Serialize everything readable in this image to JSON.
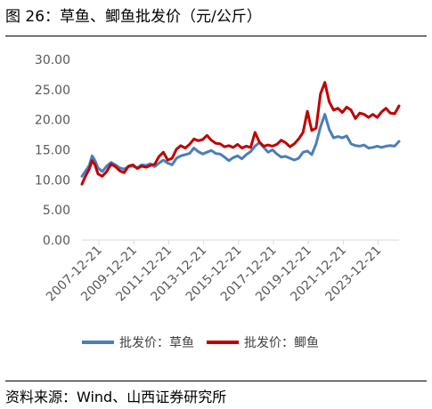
{
  "figure": {
    "title": "图 26：草鱼、鲫鱼批发价（元/公斤）",
    "source": "资料来源：Wind、山西证券研究所"
  },
  "chart_data": {
    "type": "line",
    "title": "",
    "xlabel": "",
    "ylabel": "",
    "ylim": [
      0,
      30
    ],
    "yticks": [
      "0.00",
      "5.00",
      "10.00",
      "15.00",
      "20.00",
      "25.00",
      "30.00"
    ],
    "xlim": [
      "2007-01",
      "2025-03"
    ],
    "xticks": [
      "2007-12-21",
      "2009-12-21",
      "2011-12-21",
      "2013-12-21",
      "2015-12-21",
      "2017-12-21",
      "2019-12-21",
      "2021-12-21",
      "2023-12-21"
    ],
    "grid": false,
    "legend": "bottom",
    "series": [
      {
        "name": "批发价：草鱼",
        "color": "#4a7ebb",
        "points": [
          [
            "2007-01",
            10.6
          ],
          [
            "2007-03",
            11.3
          ],
          [
            "2007-06",
            12.4
          ],
          [
            "2007-08",
            14.0
          ],
          [
            "2007-10",
            13.2
          ],
          [
            "2007-12",
            12.0
          ],
          [
            "2008-03",
            11.4
          ],
          [
            "2008-06",
            12.3
          ],
          [
            "2008-09",
            12.9
          ],
          [
            "2008-12",
            12.5
          ],
          [
            "2009-03",
            12.0
          ],
          [
            "2009-06",
            11.8
          ],
          [
            "2009-09",
            12.2
          ],
          [
            "2009-12",
            12.3
          ],
          [
            "2010-03",
            12.0
          ],
          [
            "2010-06",
            12.5
          ],
          [
            "2010-09",
            12.4
          ],
          [
            "2010-12",
            12.7
          ],
          [
            "2011-03",
            12.2
          ],
          [
            "2011-06",
            12.8
          ],
          [
            "2011-09",
            13.3
          ],
          [
            "2011-12",
            12.8
          ],
          [
            "2012-03",
            12.5
          ],
          [
            "2012-06",
            13.6
          ],
          [
            "2012-09",
            14.0
          ],
          [
            "2012-12",
            14.2
          ],
          [
            "2013-03",
            14.4
          ],
          [
            "2013-06",
            15.3
          ],
          [
            "2013-09",
            14.7
          ],
          [
            "2013-12",
            14.3
          ],
          [
            "2014-03",
            14.6
          ],
          [
            "2014-06",
            14.9
          ],
          [
            "2014-09",
            14.4
          ],
          [
            "2014-12",
            14.3
          ],
          [
            "2015-03",
            13.8
          ],
          [
            "2015-06",
            13.2
          ],
          [
            "2015-09",
            13.7
          ],
          [
            "2015-12",
            14.0
          ],
          [
            "2016-03",
            13.5
          ],
          [
            "2016-06",
            14.2
          ],
          [
            "2016-09",
            14.7
          ],
          [
            "2016-12",
            15.6
          ],
          [
            "2017-03",
            16.2
          ],
          [
            "2017-06",
            15.4
          ],
          [
            "2017-09",
            14.6
          ],
          [
            "2017-12",
            15.0
          ],
          [
            "2018-03",
            14.3
          ],
          [
            "2018-06",
            13.8
          ],
          [
            "2018-09",
            13.9
          ],
          [
            "2018-12",
            13.6
          ],
          [
            "2019-03",
            13.3
          ],
          [
            "2019-06",
            13.6
          ],
          [
            "2019-09",
            14.6
          ],
          [
            "2019-12",
            14.8
          ],
          [
            "2020-03",
            14.2
          ],
          [
            "2020-06",
            16.0
          ],
          [
            "2020-09",
            18.8
          ],
          [
            "2020-12",
            20.9
          ],
          [
            "2021-03",
            18.4
          ],
          [
            "2021-06",
            17.0
          ],
          [
            "2021-09",
            17.2
          ],
          [
            "2021-12",
            17.0
          ],
          [
            "2022-03",
            17.3
          ],
          [
            "2022-06",
            16.0
          ],
          [
            "2022-09",
            15.7
          ],
          [
            "2022-12",
            15.6
          ],
          [
            "2023-03",
            15.8
          ],
          [
            "2023-06",
            15.3
          ],
          [
            "2023-09",
            15.4
          ],
          [
            "2023-12",
            15.6
          ],
          [
            "2024-03",
            15.4
          ],
          [
            "2024-06",
            15.6
          ],
          [
            "2024-09",
            15.7
          ],
          [
            "2024-12",
            15.6
          ],
          [
            "2025-03",
            16.4
          ]
        ]
      },
      {
        "name": "批发价：鲫鱼",
        "color": "#c00000",
        "points": [
          [
            "2007-01",
            9.3
          ],
          [
            "2007-03",
            10.4
          ],
          [
            "2007-06",
            11.8
          ],
          [
            "2007-08",
            13.2
          ],
          [
            "2007-10",
            12.5
          ],
          [
            "2007-12",
            11.0
          ],
          [
            "2008-03",
            10.6
          ],
          [
            "2008-06",
            11.4
          ],
          [
            "2008-09",
            12.6
          ],
          [
            "2008-12",
            12.2
          ],
          [
            "2009-03",
            11.5
          ],
          [
            "2009-06",
            11.2
          ],
          [
            "2009-09",
            12.3
          ],
          [
            "2009-12",
            12.5
          ],
          [
            "2010-03",
            11.9
          ],
          [
            "2010-06",
            12.3
          ],
          [
            "2010-09",
            12.1
          ],
          [
            "2010-12",
            12.4
          ],
          [
            "2011-03",
            12.6
          ],
          [
            "2011-06",
            13.9
          ],
          [
            "2011-09",
            14.6
          ],
          [
            "2011-12",
            13.3
          ],
          [
            "2012-03",
            13.6
          ],
          [
            "2012-06",
            15.1
          ],
          [
            "2012-09",
            15.7
          ],
          [
            "2012-12",
            15.3
          ],
          [
            "2013-03",
            15.9
          ],
          [
            "2013-06",
            16.8
          ],
          [
            "2013-09",
            16.5
          ],
          [
            "2013-12",
            16.7
          ],
          [
            "2014-03",
            17.4
          ],
          [
            "2014-06",
            16.6
          ],
          [
            "2014-09",
            16.1
          ],
          [
            "2014-12",
            16.0
          ],
          [
            "2015-03",
            15.5
          ],
          [
            "2015-06",
            15.7
          ],
          [
            "2015-09",
            15.4
          ],
          [
            "2015-12",
            15.9
          ],
          [
            "2016-03",
            15.3
          ],
          [
            "2016-06",
            15.6
          ],
          [
            "2016-09",
            15.4
          ],
          [
            "2016-12",
            17.9
          ],
          [
            "2017-03",
            16.3
          ],
          [
            "2017-06",
            15.6
          ],
          [
            "2017-09",
            15.8
          ],
          [
            "2017-12",
            15.6
          ],
          [
            "2018-03",
            15.9
          ],
          [
            "2018-06",
            16.6
          ],
          [
            "2018-09",
            16.2
          ],
          [
            "2018-12",
            15.5
          ],
          [
            "2019-03",
            16.0
          ],
          [
            "2019-06",
            16.8
          ],
          [
            "2019-09",
            17.9
          ],
          [
            "2019-12",
            21.4
          ],
          [
            "2020-03",
            18.2
          ],
          [
            "2020-06",
            18.6
          ],
          [
            "2020-09",
            24.3
          ],
          [
            "2020-12",
            26.2
          ],
          [
            "2021-03",
            23.0
          ],
          [
            "2021-06",
            21.6
          ],
          [
            "2021-09",
            21.9
          ],
          [
            "2021-12",
            21.2
          ],
          [
            "2022-03",
            22.1
          ],
          [
            "2022-06",
            21.6
          ],
          [
            "2022-09",
            20.2
          ],
          [
            "2022-12",
            21.1
          ],
          [
            "2023-03",
            20.9
          ],
          [
            "2023-06",
            20.4
          ],
          [
            "2023-09",
            20.9
          ],
          [
            "2023-12",
            20.4
          ],
          [
            "2024-03",
            21.3
          ],
          [
            "2024-06",
            21.9
          ],
          [
            "2024-09",
            21.1
          ],
          [
            "2024-12",
            21.0
          ],
          [
            "2025-03",
            22.3
          ]
        ]
      }
    ]
  }
}
